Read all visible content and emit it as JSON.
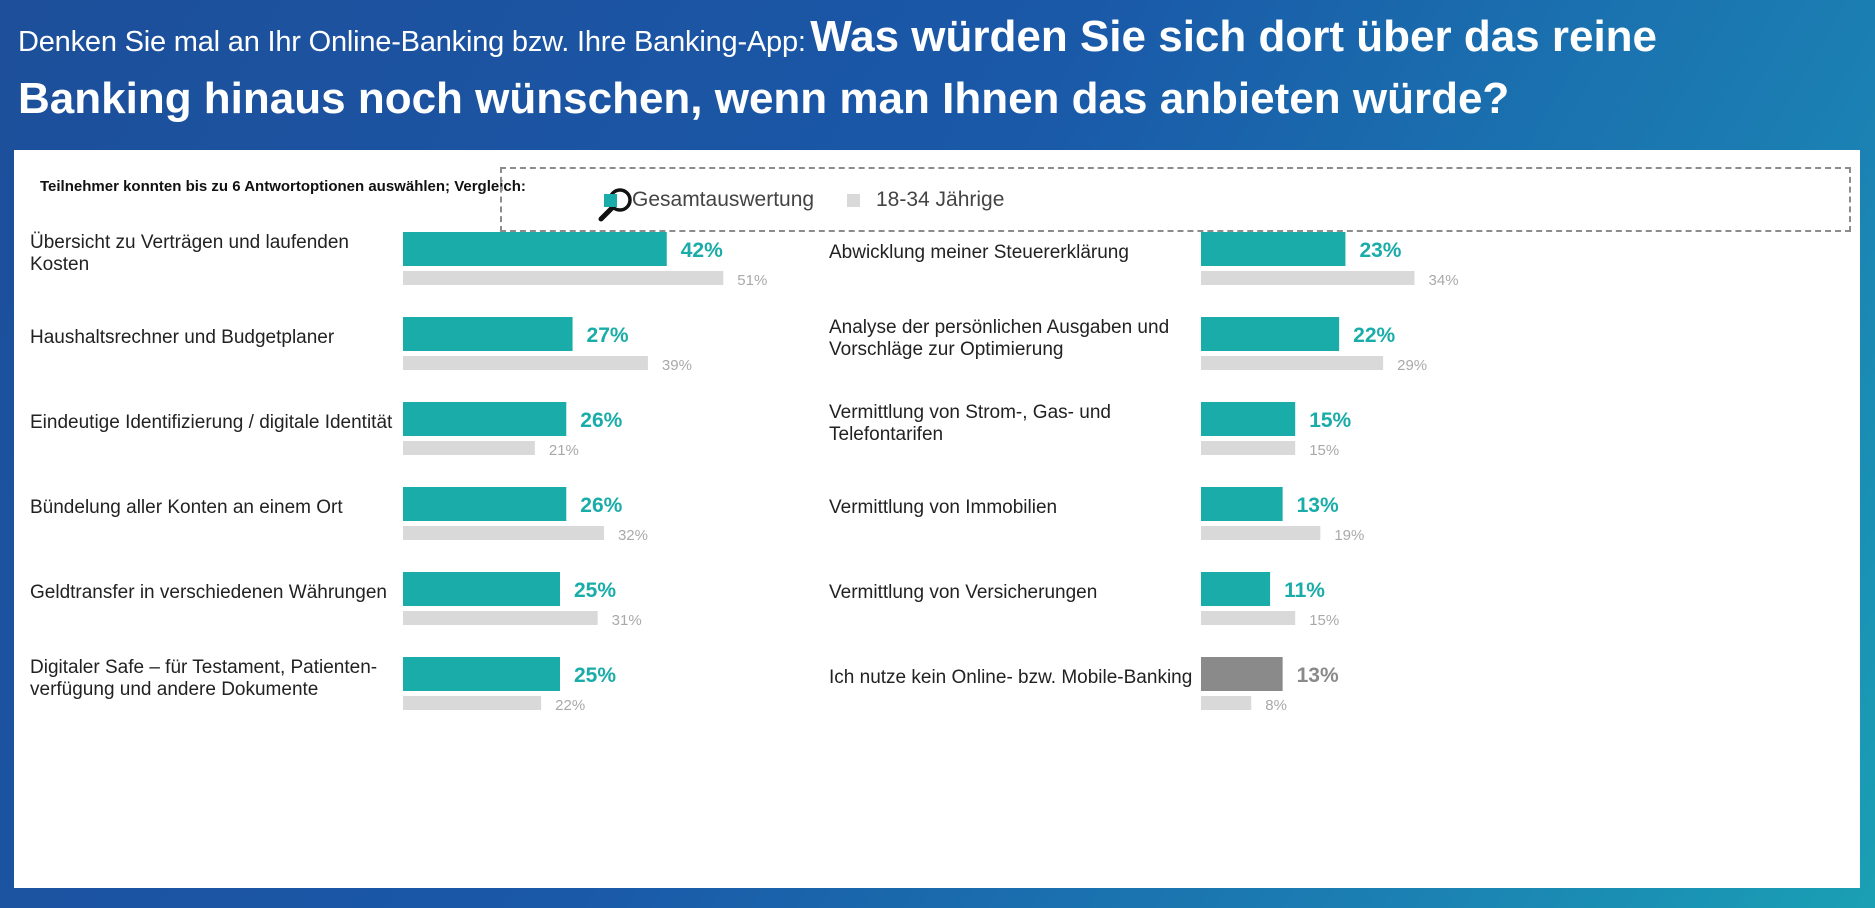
{
  "header": {
    "intro": "Denken Sie mal an Ihr Online-Banking bzw. Ihre Banking-App:",
    "question_line1": "Was würden Sie sich dort über das reine",
    "question_line2": "Banking hinaus noch wünschen, wenn man Ihnen das anbieten würde?"
  },
  "note": "Teilnehmer konnten bis zu 6 Antwortoptionen auswählen; Vergleich:",
  "legend": {
    "icon": "magnifier-icon",
    "items": [
      {
        "label": "Gesamtauswertung",
        "color": "#19aca8"
      },
      {
        "label": "18-34 Jährige",
        "color": "#d9d9d9"
      }
    ]
  },
  "colors": {
    "total": "#19aca8",
    "young": "#d9d9d9",
    "none_total": "#8a8a8a",
    "young_label": "#a9a9a9",
    "none_label": "#8a8a8a"
  },
  "chart_data": {
    "type": "bar",
    "orientation": "horizontal",
    "unit": "%",
    "series": [
      {
        "name": "Gesamtauswertung"
      },
      {
        "name": "18-34 Jährige"
      }
    ],
    "columns": [
      [
        {
          "label": [
            "Übersicht zu Verträgen und laufenden",
            "Kosten"
          ],
          "total": 42,
          "young": 51,
          "total_label": "42%",
          "young_label": "51%"
        },
        {
          "label": [
            "Haushaltsrechner und Budgetplaner"
          ],
          "total": 27,
          "young": 39,
          "total_label": "27%",
          "young_label": "39%"
        },
        {
          "label": [
            "Eindeutige Identifizierung / digitale Identität"
          ],
          "total": 26,
          "young": 21,
          "total_label": "26%",
          "young_label": "21%"
        },
        {
          "label": [
            "Bündelung aller Konten an einem Ort"
          ],
          "total": 26,
          "young": 32,
          "total_label": "26%",
          "young_label": "32%"
        },
        {
          "label": [
            "Geldtransfer in verschiedenen Währungen"
          ],
          "total": 25,
          "young": 31,
          "total_label": "25%",
          "young_label": "31%"
        },
        {
          "label": [
            "Digitaler Safe – für Testament, Patienten-",
            "verfügung und andere Dokumente"
          ],
          "total": 25,
          "young": 22,
          "total_label": "25%",
          "young_label": "22%"
        }
      ],
      [
        {
          "label": [
            "Abwicklung meiner Steuererklärung"
          ],
          "total": 23,
          "young": 34,
          "total_label": "23%",
          "young_label": "34%"
        },
        {
          "label": [
            "Analyse der persönlichen Ausgaben und",
            "Vorschläge zur Optimierung"
          ],
          "total": 22,
          "young": 29,
          "total_label": "22%",
          "young_label": "29%"
        },
        {
          "label": [
            "Vermittlung von Strom-, Gas- und",
            "Telefontarifen"
          ],
          "total": 15,
          "young": 15,
          "total_label": "15%",
          "young_label": "15%"
        },
        {
          "label": [
            "Vermittlung von Immobilien"
          ],
          "total": 13,
          "young": 19,
          "total_label": "13%",
          "young_label": "19%"
        },
        {
          "label": [
            "Vermittlung von Versicherungen"
          ],
          "total": 11,
          "young": 15,
          "total_label": "11%",
          "young_label": "15%"
        },
        {
          "label": [
            "Ich nutze kein Online- bzw. Mobile-Banking"
          ],
          "total": 13,
          "young": 8,
          "total_label": "13%",
          "young_label": "8%",
          "muted": true
        }
      ]
    ]
  }
}
